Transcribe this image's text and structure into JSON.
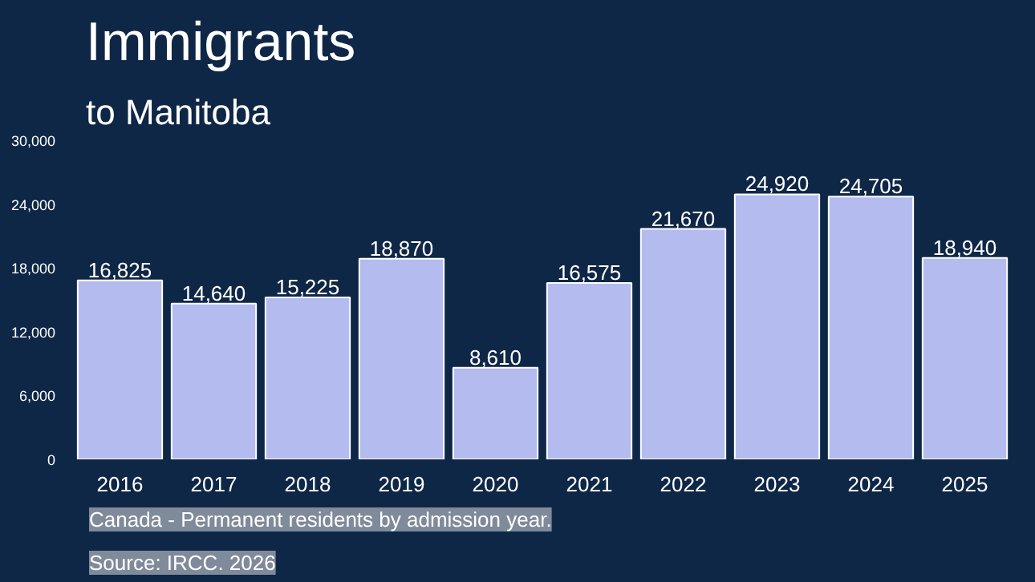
{
  "chart_data": {
    "type": "bar",
    "title": "Immigrants",
    "subtitle": "to Manitoba",
    "categories": [
      "2016",
      "2017",
      "2018",
      "2019",
      "2020",
      "2021",
      "2022",
      "2023",
      "2024",
      "2025"
    ],
    "values": [
      16825,
      14640,
      15225,
      18870,
      8610,
      16575,
      21670,
      24920,
      24705,
      18940
    ],
    "color": "#b4bbef",
    "value_labels": [
      "16,825",
      "14,640",
      "15,225",
      "18,870",
      "8,610",
      "16,575",
      "21,670",
      "24,920",
      "24,705",
      "18,940"
    ],
    "ylim": [
      0,
      30000
    ],
    "yticks": [
      {
        "value": 0,
        "label": "0"
      },
      {
        "value": 6000,
        "label": "6,000"
      },
      {
        "value": 12000,
        "label": "12,000"
      },
      {
        "value": 18000,
        "label": "18,000"
      },
      {
        "value": 24000,
        "label": "24,000"
      },
      {
        "value": 30000,
        "label": "30,000"
      }
    ],
    "grid": false,
    "annotations": [
      "Canada - Permanent residents by admission year.",
      "Source: IRCC. 2026"
    ]
  }
}
